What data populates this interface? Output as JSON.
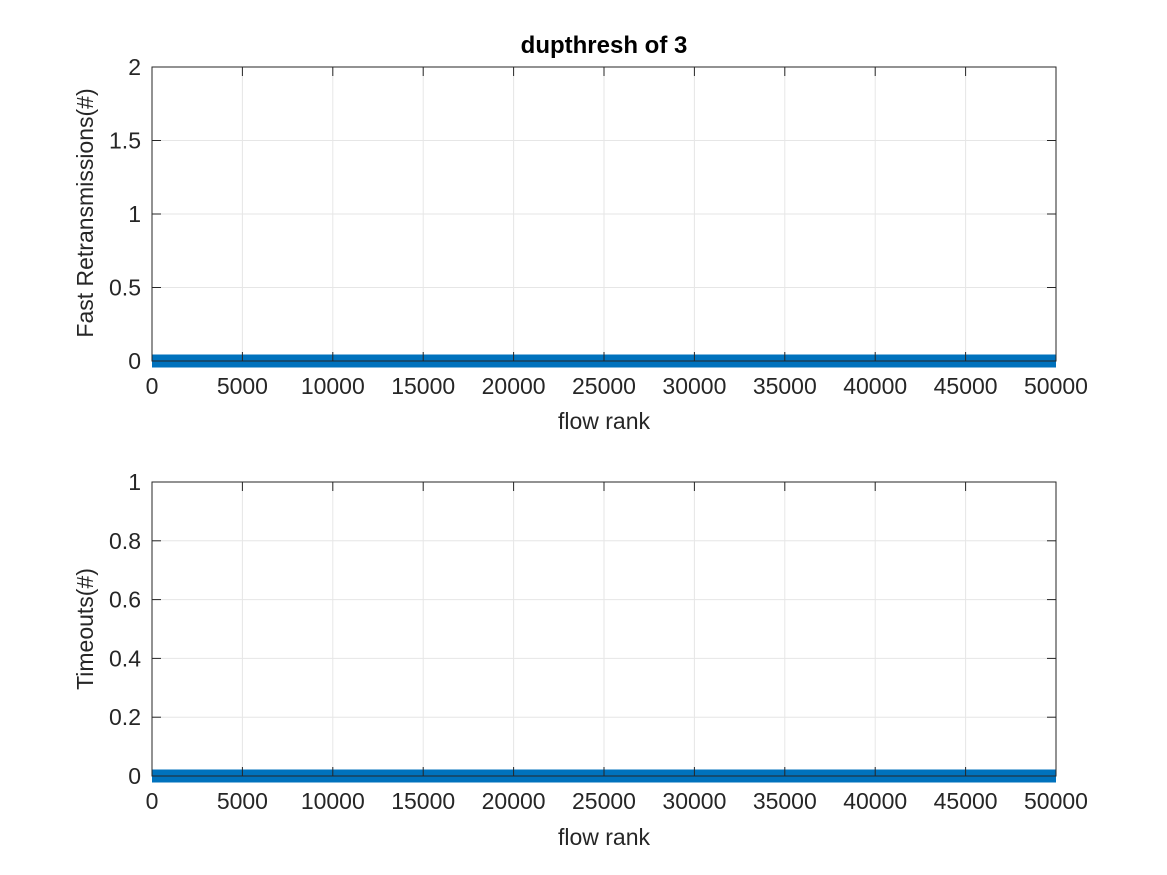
{
  "chart_data": [
    {
      "type": "line",
      "title": "dupthresh of 3",
      "xlabel": "flow rank",
      "ylabel": "Fast Retransmissions(#)",
      "xlim": [
        0,
        50000
      ],
      "ylim": [
        0,
        2
      ],
      "xticks": [
        0,
        5000,
        10000,
        15000,
        20000,
        25000,
        30000,
        35000,
        40000,
        45000,
        50000
      ],
      "yticks": [
        0,
        0.5,
        1,
        1.5,
        2
      ],
      "xtick_labels": [
        "0",
        "5000",
        "10000",
        "15000",
        "20000",
        "25000",
        "30000",
        "35000",
        "40000",
        "45000",
        "50000"
      ],
      "ytick_labels": [
        "0",
        "0.5",
        "1",
        "1.5",
        "2"
      ],
      "grid": true,
      "series": [
        {
          "x": [
            0,
            50000
          ],
          "y": [
            0,
            0
          ],
          "color": "#0072BD"
        }
      ]
    },
    {
      "type": "line",
      "title": "",
      "xlabel": "flow rank",
      "ylabel": "Timeouts(#)",
      "xlim": [
        0,
        50000
      ],
      "ylim": [
        0,
        1
      ],
      "xticks": [
        0,
        5000,
        10000,
        15000,
        20000,
        25000,
        30000,
        35000,
        40000,
        45000,
        50000
      ],
      "yticks": [
        0,
        0.2,
        0.4,
        0.6,
        0.8,
        1
      ],
      "xtick_labels": [
        "0",
        "5000",
        "10000",
        "15000",
        "20000",
        "25000",
        "30000",
        "35000",
        "40000",
        "45000",
        "50000"
      ],
      "ytick_labels": [
        "0",
        "0.2",
        "0.4",
        "0.6",
        "0.8",
        "1"
      ],
      "grid": true,
      "series": [
        {
          "x": [
            0,
            50000
          ],
          "y": [
            0,
            0
          ],
          "color": "#0072BD"
        }
      ]
    }
  ]
}
